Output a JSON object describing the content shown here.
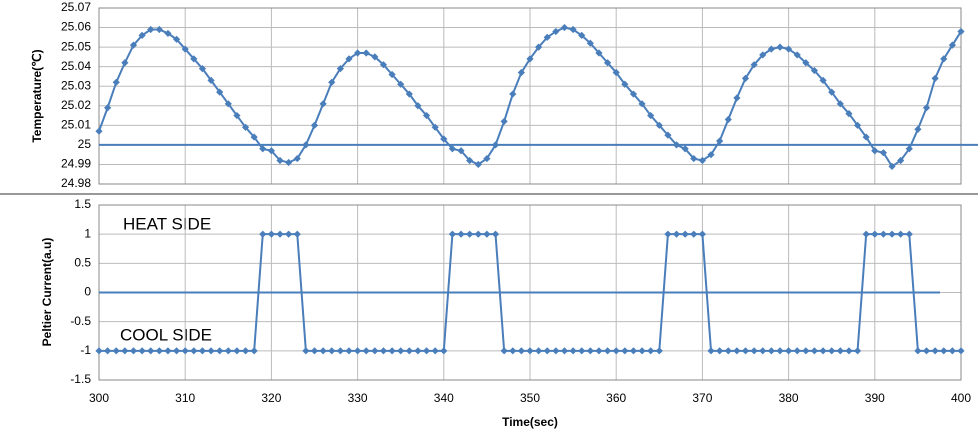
{
  "chart_data": [
    {
      "type": "line",
      "ylabel": "Temperature(℃)",
      "x": [
        300,
        301,
        302,
        303,
        304,
        305,
        306,
        307,
        308,
        309,
        310,
        311,
        312,
        313,
        314,
        315,
        316,
        317,
        318,
        319,
        320,
        321,
        322,
        323,
        324,
        325,
        326,
        327,
        328,
        329,
        330,
        331,
        332,
        333,
        334,
        335,
        336,
        337,
        338,
        339,
        340,
        341,
        342,
        343,
        344,
        345,
        346,
        347,
        348,
        349,
        350,
        351,
        352,
        353,
        354,
        355,
        356,
        357,
        358,
        359,
        360,
        361,
        362,
        363,
        364,
        365,
        366,
        367,
        368,
        369,
        370,
        371,
        372,
        373,
        374,
        375,
        376,
        377,
        378,
        379,
        380,
        381,
        382,
        383,
        384,
        385,
        386,
        387,
        388,
        389,
        390,
        391,
        392,
        393,
        394,
        395,
        396,
        397,
        398,
        399,
        400
      ],
      "series": [
        {
          "color": "#4a7ebb",
          "values": [
            25.007,
            25.019,
            25.032,
            25.042,
            25.051,
            25.056,
            25.059,
            25.059,
            25.057,
            25.054,
            25.049,
            25.044,
            25.039,
            25.033,
            25.027,
            25.021,
            25.015,
            25.009,
            25.004,
            24.998,
            24.997,
            24.992,
            24.991,
            24.993,
            25.0,
            25.01,
            25.021,
            25.032,
            25.039,
            25.044,
            25.047,
            25.047,
            25.045,
            25.041,
            25.036,
            25.031,
            25.026,
            25.02,
            25.015,
            25.009,
            25.003,
            24.998,
            24.997,
            24.992,
            24.99,
            24.993,
            25.0,
            25.012,
            25.026,
            25.037,
            25.044,
            25.05,
            25.055,
            25.058,
            25.06,
            25.059,
            25.056,
            25.052,
            25.047,
            25.042,
            25.037,
            25.031,
            25.026,
            25.021,
            25.015,
            25.01,
            25.005,
            25.0,
            24.998,
            24.993,
            24.992,
            24.995,
            25.002,
            25.013,
            25.024,
            25.034,
            25.041,
            25.046,
            25.049,
            25.05,
            25.049,
            25.046,
            25.042,
            25.038,
            25.033,
            25.027,
            25.021,
            25.016,
            25.01,
            25.004,
            24.997,
            24.996,
            24.989,
            24.992,
            24.998,
            25.008,
            25.019,
            25.034,
            25.044,
            25.051,
            25.058
          ]
        }
      ],
      "hline": 25,
      "xlim": [
        300,
        400
      ],
      "ylim": [
        24.98,
        25.07
      ],
      "yticks": [
        24.98,
        24.99,
        25,
        25.01,
        25.02,
        25.03,
        25.04,
        25.05,
        25.06,
        25.07
      ],
      "grid": true
    },
    {
      "type": "line",
      "ylabel": "Peltier Current(a.u)",
      "xlabel": "Time(sec)",
      "annotations": [
        "HEAT SIDE",
        "COOL SIDE"
      ],
      "x": [
        300,
        301,
        302,
        303,
        304,
        305,
        306,
        307,
        308,
        309,
        310,
        311,
        312,
        313,
        314,
        315,
        316,
        317,
        318,
        319,
        320,
        321,
        322,
        323,
        324,
        325,
        326,
        327,
        328,
        329,
        330,
        331,
        332,
        333,
        334,
        335,
        336,
        337,
        338,
        339,
        340,
        341,
        342,
        343,
        344,
        345,
        346,
        347,
        348,
        349,
        350,
        351,
        352,
        353,
        354,
        355,
        356,
        357,
        358,
        359,
        360,
        361,
        362,
        363,
        364,
        365,
        366,
        367,
        368,
        369,
        370,
        371,
        372,
        373,
        374,
        375,
        376,
        377,
        378,
        379,
        380,
        381,
        382,
        383,
        384,
        385,
        386,
        387,
        388,
        389,
        390,
        391,
        392,
        393,
        394,
        395,
        396,
        397,
        398,
        399,
        400
      ],
      "series": [
        {
          "color": "#4a7ebb",
          "values": [
            -1,
            -1,
            -1,
            -1,
            -1,
            -1,
            -1,
            -1,
            -1,
            -1,
            -1,
            -1,
            -1,
            -1,
            -1,
            -1,
            -1,
            -1,
            -1,
            1,
            1,
            1,
            1,
            1,
            -1,
            -1,
            -1,
            -1,
            -1,
            -1,
            -1,
            -1,
            -1,
            -1,
            -1,
            -1,
            -1,
            -1,
            -1,
            -1,
            -1,
            1,
            1,
            1,
            1,
            1,
            1,
            -1,
            -1,
            -1,
            -1,
            -1,
            -1,
            -1,
            -1,
            -1,
            -1,
            -1,
            -1,
            -1,
            -1,
            -1,
            -1,
            -1,
            -1,
            -1,
            1,
            1,
            1,
            1,
            1,
            -1,
            -1,
            -1,
            -1,
            -1,
            -1,
            -1,
            -1,
            -1,
            -1,
            -1,
            -1,
            -1,
            -1,
            -1,
            -1,
            -1,
            -1,
            1,
            1,
            1,
            1,
            1,
            1,
            -1,
            -1,
            -1,
            -1,
            -1,
            -1
          ]
        }
      ],
      "hline": 0,
      "xlim": [
        300,
        400
      ],
      "ylim": [
        -1.5,
        1.5
      ],
      "xticks": [
        300,
        310,
        320,
        330,
        340,
        350,
        360,
        370,
        380,
        390,
        400
      ],
      "yticks": [
        -1.5,
        -1,
        -0.5,
        0,
        0.5,
        1,
        1.5
      ],
      "grid": true
    }
  ]
}
